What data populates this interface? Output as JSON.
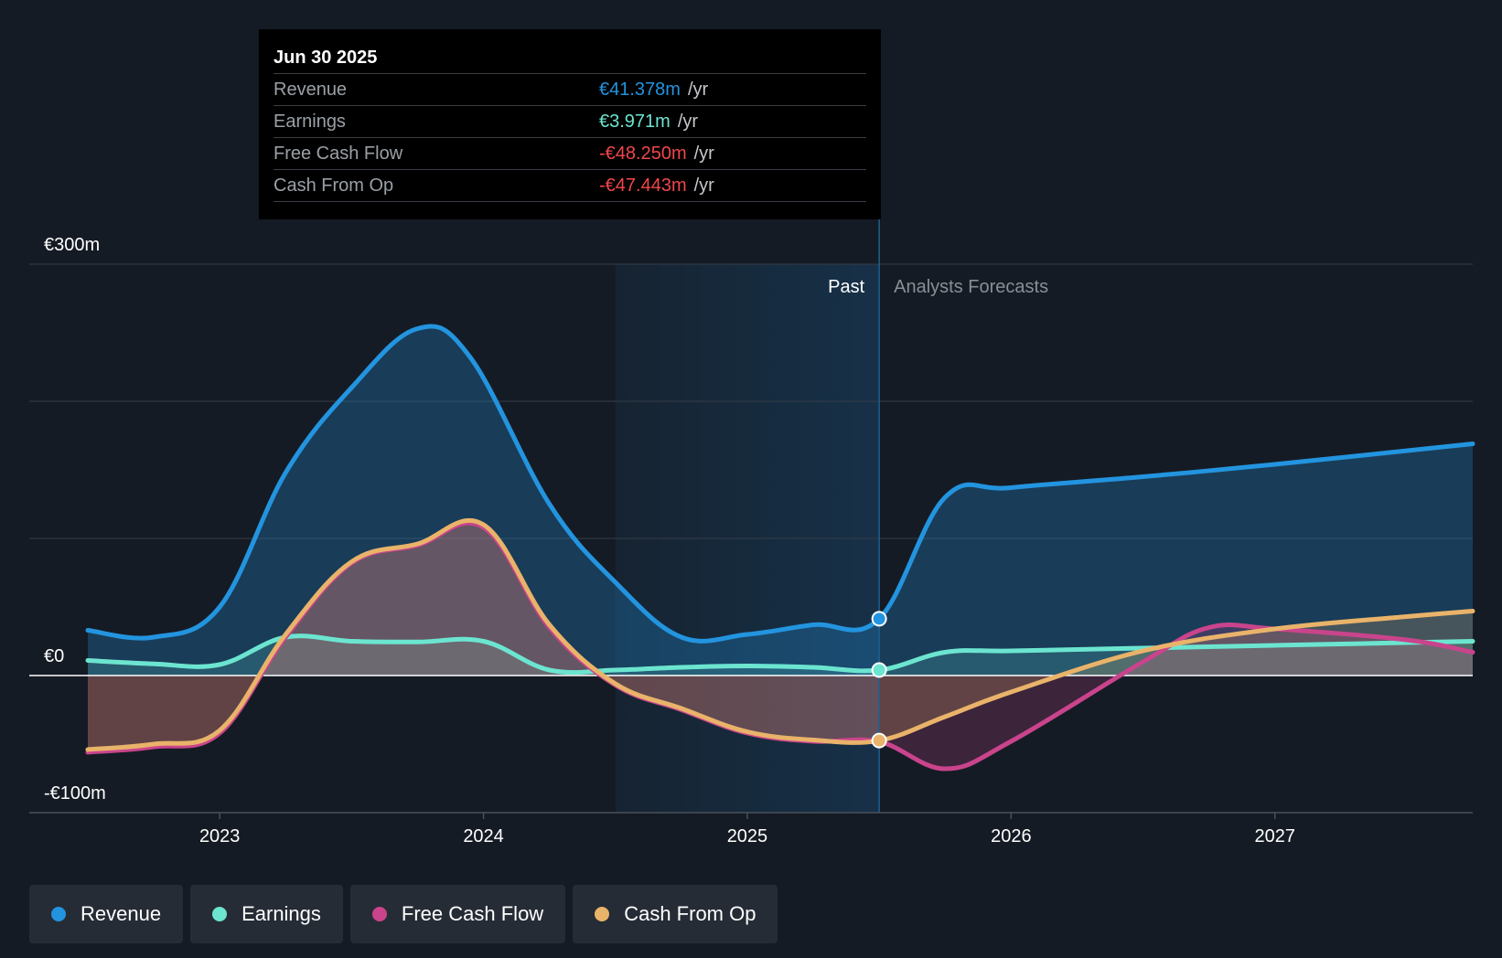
{
  "tooltip": {
    "date": "Jun 30 2025",
    "rows": [
      {
        "label": "Revenue",
        "value": "€41.378m",
        "unit": "/yr",
        "color": "#2394df"
      },
      {
        "label": "Earnings",
        "value": "€3.971m",
        "unit": "/yr",
        "color": "#6ce5d0"
      },
      {
        "label": "Free Cash Flow",
        "value": "-€48.250m",
        "unit": "/yr",
        "color": "#f0474a"
      },
      {
        "label": "Cash From Op",
        "value": "-€47.443m",
        "unit": "/yr",
        "color": "#f0474a"
      }
    ]
  },
  "labels": {
    "past": "Past",
    "forecast": "Analysts Forecasts"
  },
  "legend": [
    {
      "label": "Revenue",
      "color": "#2394df"
    },
    {
      "label": "Earnings",
      "color": "#6ce5d0"
    },
    {
      "label": "Free Cash Flow",
      "color": "#c9448c"
    },
    {
      "label": "Cash From Op",
      "color": "#e9b36a"
    }
  ],
  "chart_data": {
    "type": "line",
    "title": "",
    "xlabel": "",
    "ylabel": "",
    "x_range": [
      2022.5,
      2027.75
    ],
    "ylim": [
      -100,
      300
    ],
    "y_ticks": [
      {
        "value": 300,
        "label": "€300m"
      },
      {
        "value": 0,
        "label": "€0"
      },
      {
        "value": -100,
        "label": "-€100m"
      }
    ],
    "gridlines": [
      300,
      200,
      100,
      -100
    ],
    "x_ticks": [
      {
        "value": 2023,
        "label": "2023"
      },
      {
        "value": 2024,
        "label": "2024"
      },
      {
        "value": 2025,
        "label": "2025"
      },
      {
        "value": 2026,
        "label": "2026"
      },
      {
        "value": 2027,
        "label": "2027"
      }
    ],
    "past_start": 2024.5,
    "present": 2025.5,
    "series": [
      {
        "name": "Revenue",
        "color": "#2394df",
        "fill": true,
        "points": [
          [
            2022.5,
            33
          ],
          [
            2022.75,
            28
          ],
          [
            2023.0,
            50
          ],
          [
            2023.25,
            148
          ],
          [
            2023.5,
            210
          ],
          [
            2023.75,
            253
          ],
          [
            2023.95,
            232
          ],
          [
            2024.25,
            125
          ],
          [
            2024.5,
            68
          ],
          [
            2024.75,
            28
          ],
          [
            2025.0,
            30
          ],
          [
            2025.25,
            37
          ],
          [
            2025.5,
            41.4
          ],
          [
            2025.75,
            130
          ],
          [
            2026.0,
            137
          ],
          [
            2026.5,
            145
          ],
          [
            2027.0,
            154
          ],
          [
            2027.75,
            169
          ]
        ]
      },
      {
        "name": "Earnings",
        "color": "#6ce5d0",
        "fill": true,
        "points": [
          [
            2022.5,
            11
          ],
          [
            2022.75,
            8.5
          ],
          [
            2023.0,
            8
          ],
          [
            2023.25,
            28
          ],
          [
            2023.5,
            25
          ],
          [
            2023.75,
            24.5
          ],
          [
            2024.0,
            25
          ],
          [
            2024.25,
            4
          ],
          [
            2024.5,
            4
          ],
          [
            2024.75,
            6
          ],
          [
            2025.0,
            7
          ],
          [
            2025.25,
            6
          ],
          [
            2025.5,
            4.0
          ],
          [
            2025.75,
            17
          ],
          [
            2026.0,
            18
          ],
          [
            2026.5,
            20
          ],
          [
            2027.0,
            22
          ],
          [
            2027.75,
            25
          ]
        ]
      },
      {
        "name": "Free Cash Flow",
        "color": "#c9448c",
        "fill": true,
        "points": [
          [
            2022.5,
            -56
          ],
          [
            2022.75,
            -52
          ],
          [
            2023.0,
            -42
          ],
          [
            2023.25,
            28
          ],
          [
            2023.5,
            82
          ],
          [
            2023.75,
            95
          ],
          [
            2024.0,
            108
          ],
          [
            2024.25,
            35
          ],
          [
            2024.5,
            -7
          ],
          [
            2024.75,
            -25
          ],
          [
            2025.0,
            -42
          ],
          [
            2025.25,
            -48
          ],
          [
            2025.5,
            -48.25
          ],
          [
            2025.75,
            -68
          ],
          [
            2026.0,
            -48
          ],
          [
            2026.5,
            10
          ],
          [
            2026.75,
            35
          ],
          [
            2027.0,
            34
          ],
          [
            2027.5,
            26
          ],
          [
            2027.75,
            17
          ]
        ]
      },
      {
        "name": "Cash From Op",
        "color": "#e9b36a",
        "fill": true,
        "points": [
          [
            2022.5,
            -54
          ],
          [
            2022.75,
            -50
          ],
          [
            2023.0,
            -40
          ],
          [
            2023.25,
            30
          ],
          [
            2023.5,
            83
          ],
          [
            2023.75,
            96
          ],
          [
            2024.0,
            110
          ],
          [
            2024.25,
            37
          ],
          [
            2024.5,
            -6
          ],
          [
            2024.75,
            -24
          ],
          [
            2025.0,
            -41
          ],
          [
            2025.25,
            -47
          ],
          [
            2025.5,
            -47.44
          ],
          [
            2025.75,
            -30
          ],
          [
            2026.0,
            -12
          ],
          [
            2026.5,
            18
          ],
          [
            2027.0,
            34
          ],
          [
            2027.5,
            43
          ],
          [
            2027.75,
            47
          ]
        ]
      }
    ]
  }
}
